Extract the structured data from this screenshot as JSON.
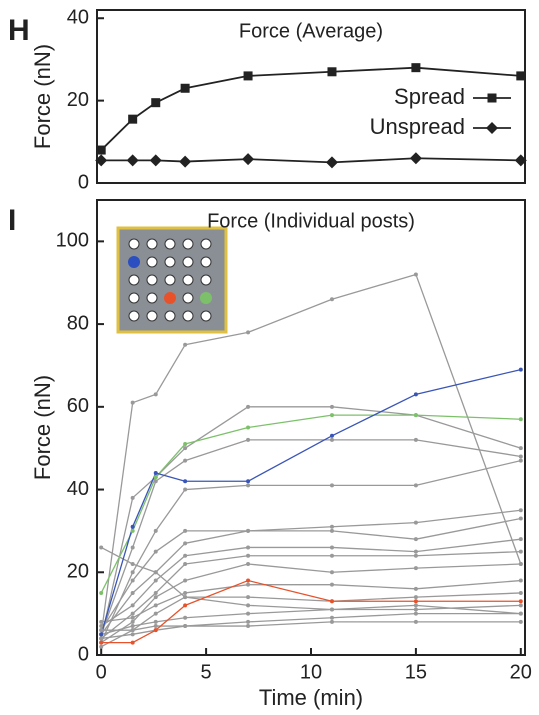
{
  "chart_data": [
    {
      "type": "line",
      "panel_label": "H",
      "title": "Force (Average)",
      "ylabel": "Force (nN)",
      "x": [
        0,
        1.5,
        2.6,
        4,
        7,
        11,
        15,
        20
      ],
      "xlim": [
        -0.2,
        20.2
      ],
      "ylim": [
        0,
        42
      ],
      "yticks": [
        0,
        20,
        40
      ],
      "legend": "right",
      "series": [
        {
          "name": "Spread",
          "color": "#222222",
          "marker": "square",
          "values": [
            8,
            15.5,
            19.5,
            23,
            26,
            27,
            28,
            26
          ]
        },
        {
          "name": "Unspread",
          "color": "#222222",
          "marker": "diamond",
          "values": [
            5.5,
            5.5,
            5.5,
            5.2,
            5.8,
            5,
            6,
            5.5
          ]
        }
      ]
    },
    {
      "type": "line",
      "panel_label": "I",
      "title": "Force (Individual posts)",
      "ylabel": "Force (nN)",
      "xlabel": "Time (min)",
      "x": [
        0,
        1.5,
        2.6,
        4,
        7,
        11,
        15,
        20
      ],
      "xlim": [
        -0.2,
        20.2
      ],
      "xticks": [
        0,
        5,
        10,
        15,
        20
      ],
      "ylim": [
        0,
        110
      ],
      "yticks": [
        0,
        20,
        40,
        60,
        80,
        100
      ],
      "series": [
        {
          "color": "#999999",
          "marker": "dot",
          "values": [
            5,
            61,
            63,
            75,
            78,
            86,
            92,
            22
          ]
        },
        {
          "color": "#999999",
          "marker": "dot",
          "values": [
            4,
            38,
            43,
            50,
            60,
            60,
            58,
            50
          ]
        },
        {
          "color": "#999999",
          "marker": "dot",
          "values": [
            5,
            26,
            42,
            47,
            52,
            52,
            52,
            48
          ]
        },
        {
          "color": "#999999",
          "marker": "dot",
          "values": [
            3,
            20,
            30,
            40,
            41,
            41,
            41,
            47
          ]
        },
        {
          "color": "#999999",
          "marker": "dot",
          "values": [
            6,
            18,
            25,
            30,
            30,
            31,
            32,
            35
          ]
        },
        {
          "color": "#999999",
          "marker": "dot",
          "values": [
            5,
            15,
            20,
            27,
            30,
            30,
            28,
            33
          ]
        },
        {
          "color": "#999999",
          "marker": "dot",
          "values": [
            7,
            12,
            18,
            24,
            26,
            26,
            25,
            28
          ]
        },
        {
          "color": "#999999",
          "marker": "dot",
          "values": [
            4,
            10,
            15,
            22,
            24,
            24,
            24,
            25
          ]
        },
        {
          "color": "#999999",
          "marker": "dot",
          "values": [
            3,
            8,
            14,
            18,
            22,
            20,
            21,
            22
          ]
        },
        {
          "color": "#999999",
          "marker": "dot",
          "values": [
            8,
            9,
            12,
            15,
            17,
            17,
            16,
            18
          ]
        },
        {
          "color": "#999999",
          "marker": "dot",
          "values": [
            2,
            6,
            10,
            14,
            14,
            13,
            14,
            15
          ]
        },
        {
          "color": "#999999",
          "marker": "dot",
          "values": [
            26,
            22,
            20,
            14,
            12,
            11,
            11,
            12
          ]
        },
        {
          "color": "#999999",
          "marker": "dot",
          "values": [
            5,
            7,
            8,
            9,
            10,
            11,
            12,
            10
          ]
        },
        {
          "color": "#999999",
          "marker": "dot",
          "values": [
            4,
            5,
            6,
            7,
            7,
            8,
            8,
            8
          ]
        },
        {
          "color": "#999999",
          "marker": "dot",
          "values": [
            6,
            6,
            7,
            7,
            8,
            9,
            10,
            10
          ]
        },
        {
          "color": "#7cc16a",
          "marker": "dot",
          "values": [
            15,
            30,
            43,
            51,
            55,
            58,
            58,
            57
          ]
        },
        {
          "color": "#e8522a",
          "marker": "dot",
          "values": [
            3,
            3,
            6,
            12,
            18,
            13,
            13,
            13
          ]
        },
        {
          "color": "#3a55b8",
          "marker": "dot",
          "values": [
            5,
            31,
            44,
            42,
            42,
            53,
            63,
            69
          ]
        }
      ]
    }
  ]
}
